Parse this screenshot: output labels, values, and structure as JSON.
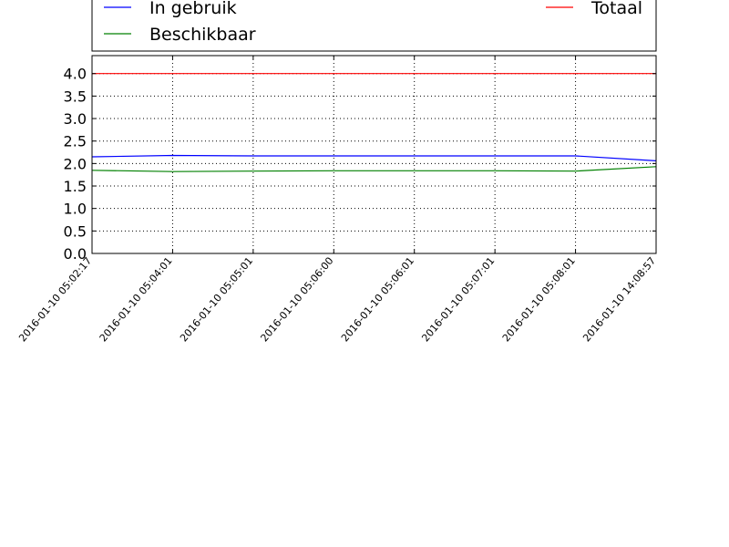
{
  "chart_data": {
    "type": "line",
    "title": "",
    "xlabel": "",
    "ylabel": "",
    "categories": [
      "2016-01-10 05:02:17",
      "2016-01-10 05:04:01",
      "2016-01-10 05:05:01",
      "2016-01-10 05:06:00",
      "2016-01-10 05:06:01",
      "2016-01-10 05:07:01",
      "2016-01-10 05:08:01",
      "2016-01-10 14:08:57"
    ],
    "y_ticks": [
      "0.0",
      "0.5",
      "1.0",
      "1.5",
      "2.0",
      "2.5",
      "3.0",
      "3.5",
      "4.0"
    ],
    "ylim": [
      0,
      4.4
    ],
    "grid": true,
    "legend_position": "top",
    "series": [
      {
        "name": "In gebruik",
        "color": "#0000ff",
        "values": [
          2.15,
          2.18,
          2.17,
          2.17,
          2.17,
          2.17,
          2.17,
          2.06
        ]
      },
      {
        "name": "Beschikbaar",
        "color": "#008000",
        "values": [
          1.85,
          1.82,
          1.83,
          1.84,
          1.84,
          1.84,
          1.83,
          1.93
        ]
      },
      {
        "name": "Totaal",
        "color": "#ff0000",
        "values": [
          4.0,
          4.0,
          4.0,
          4.0,
          4.0,
          4.0,
          4.0,
          4.0
        ]
      }
    ]
  }
}
